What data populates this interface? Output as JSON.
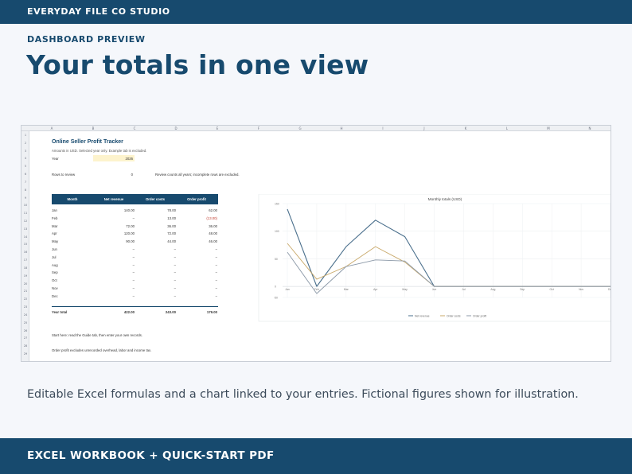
{
  "header": {
    "brand": "EVERYDAY FILE CO STUDIO"
  },
  "hero": {
    "eyebrow": "DASHBOARD PREVIEW",
    "headline": "Your totals in one view"
  },
  "sheet": {
    "columns": [
      "A",
      "B",
      "C",
      "D",
      "E",
      "F",
      "G",
      "H",
      "I",
      "J",
      "K",
      "L",
      "M",
      "N"
    ],
    "rows": [
      "1",
      "2",
      "3",
      "4",
      "5",
      "6",
      "7",
      "8",
      "9",
      "10",
      "11",
      "12",
      "13",
      "14",
      "15",
      "16",
      "17",
      "18",
      "19",
      "20",
      "21",
      "22",
      "23",
      "24",
      "25",
      "26",
      "27",
      "28",
      "29"
    ],
    "title": "Online Seller Profit Tracker",
    "subtitle": "Amounts in USD. Selected year only. Example tab is excluded.",
    "year_label": "Year",
    "year_value": "2026",
    "rows_label": "Rows to review",
    "rows_value": "0",
    "rows_note": "Review counts all years; incomplete rows are excluded.",
    "table_headers": [
      "Month",
      "Net revenue",
      "Order costs",
      "Order profit"
    ],
    "table_rows": [
      [
        "Jan",
        "140.00",
        "78.00",
        "62.00"
      ],
      [
        "Feb",
        "–",
        "13.00",
        "(13.00)"
      ],
      [
        "Mar",
        "72.00",
        "36.00",
        "36.00"
      ],
      [
        "Apr",
        "120.00",
        "72.00",
        "48.00"
      ],
      [
        "May",
        "90.00",
        "44.00",
        "46.00"
      ],
      [
        "Jun",
        "–",
        "–",
        "–"
      ],
      [
        "Jul",
        "–",
        "–",
        "–"
      ],
      [
        "Aug",
        "–",
        "–",
        "–"
      ],
      [
        "Sep",
        "–",
        "–",
        "–"
      ],
      [
        "Oct",
        "–",
        "–",
        "–"
      ],
      [
        "Nov",
        "–",
        "–",
        "–"
      ],
      [
        "Dec",
        "–",
        "–",
        "–"
      ]
    ],
    "total_row": [
      "Year total",
      "422.00",
      "243.00",
      "179.00"
    ],
    "note_start": "Start here: read the Guide tab, then enter your own records.",
    "note_profit": "Order profit excludes unrecorded overhead, labor and income tax."
  },
  "chart_data": {
    "type": "line",
    "title": "Monthly totals (USD)",
    "categories": [
      "Jan",
      "Feb",
      "Mar",
      "Apr",
      "May",
      "Jun",
      "Jul",
      "Aug",
      "Sep",
      "Oct",
      "Nov",
      "Dec"
    ],
    "ylim": [
      -20,
      150
    ],
    "yticks": [
      -50,
      0,
      50,
      100,
      150
    ],
    "series": [
      {
        "name": "Net revenue",
        "color": "#4a6f8c",
        "values": [
          140,
          0,
          72,
          120,
          90,
          0,
          0,
          0,
          0,
          0,
          0,
          0
        ]
      },
      {
        "name": "Order costs",
        "color": "#c9a96a",
        "values": [
          78,
          13,
          36,
          72,
          44,
          0,
          0,
          0,
          0,
          0,
          0,
          0
        ]
      },
      {
        "name": "Order profit",
        "color": "#8c99a8",
        "values": [
          62,
          -13,
          36,
          48,
          46,
          0,
          0,
          0,
          0,
          0,
          0,
          0
        ]
      }
    ],
    "legend": "bottom",
    "grid": true
  },
  "caption": "Editable Excel formulas and a chart linked to your entries. Fictional figures shown for illustration.",
  "footer": {
    "label": "EXCEL WORKBOOK + QUICK-START PDF"
  }
}
